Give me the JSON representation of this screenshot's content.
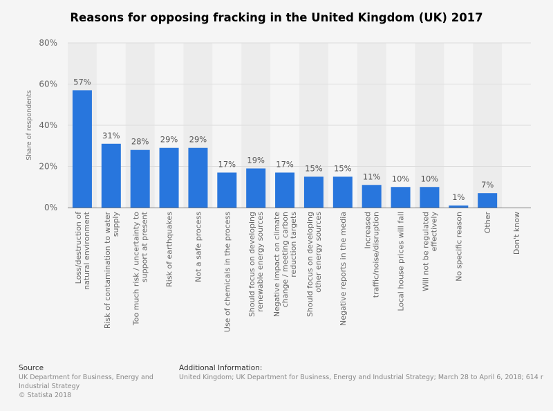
{
  "chart_data": {
    "type": "bar",
    "title": "Reasons for opposing fracking in the United Kingdom (UK) 2017",
    "ylabel": "Share of respondents",
    "xlabel": "",
    "ylim": [
      0,
      80
    ],
    "yticks": [
      "0%",
      "20%",
      "40%",
      "60%",
      "80%"
    ],
    "grid": true,
    "categories": [
      "Loss/destruction of natural environment",
      "Risk of contamination to water supply",
      "Too much risk / uncertainty to support at present",
      "Risk of earthquakes",
      "Not a safe process",
      "Use of chemicals in the process",
      "Should focus on developing renewable energy sources",
      "Negative impact on climate change / meeting carbon reduction targets",
      "Should focus on developing other energy sources",
      "Negative reports in the media",
      "Increased traffic/noise/disruption",
      "Local house prices will fall",
      "Will not be regulated effectively",
      "No specific reason",
      "Other",
      "Don't know"
    ],
    "category_lines": [
      [
        "Loss/destruction of",
        "natural environment"
      ],
      [
        "Risk of contamination to water",
        "supply"
      ],
      [
        "Too much risk / uncertainty to",
        "support at present"
      ],
      [
        "Risk of earthquakes"
      ],
      [
        "Not a safe process"
      ],
      [
        "Use of chemicals in the process"
      ],
      [
        "Should focus on developing",
        "renewable energy sources"
      ],
      [
        "Negative impact on climate",
        "change / meeting carbon",
        "reduction targets"
      ],
      [
        "Should focus on developing",
        "other energy sources"
      ],
      [
        "Negative reports in the media"
      ],
      [
        "Increased",
        "traffic/noise/disruption"
      ],
      [
        "Local house prices will fall"
      ],
      [
        "Will not be regulated",
        "effectively"
      ],
      [
        "No specific reason"
      ],
      [
        "Other"
      ],
      [
        "Don't know"
      ]
    ],
    "values": [
      57,
      31,
      28,
      29,
      29,
      17,
      19,
      17,
      15,
      15,
      11,
      10,
      10,
      1,
      7,
      null
    ],
    "data_labels": [
      "57%",
      "31%",
      "28%",
      "29%",
      "29%",
      "17%",
      "19%",
      "17%",
      "15%",
      "15%",
      "11%",
      "10%",
      "10%",
      "1%",
      "7%",
      ""
    ],
    "bar_color": "#2876dd"
  },
  "footer": {
    "source_heading": "Source",
    "source_text": "UK Department for Business, Energy and Industrial Strategy",
    "copyright": "© Statista 2018",
    "info_heading": "Additional Information:",
    "info_text": "United Kingdom; UK Department for Business, Energy and Industrial Strategy; March 28 to April 6, 2018; 614 r"
  }
}
